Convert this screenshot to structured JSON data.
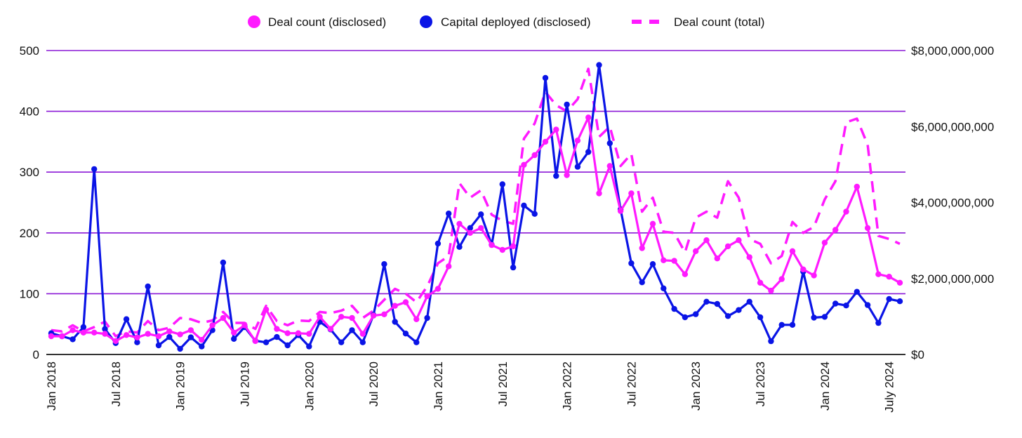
{
  "chart_data": {
    "type": "line",
    "title": "",
    "xlabel": "",
    "ylabel": "",
    "y2label": "",
    "legend_position": "top-center",
    "grid": true,
    "ylim": [
      0,
      500
    ],
    "y2lim": [
      0,
      8000000000
    ],
    "y_ticks": [
      0,
      100,
      200,
      300,
      400,
      500
    ],
    "y_tick_labels": [
      "0",
      "100",
      "200",
      "300",
      "400",
      "500"
    ],
    "y2_ticks": [
      0,
      2000000000,
      4000000000,
      6000000000,
      8000000000
    ],
    "y2_tick_labels": [
      "$0",
      "$2,000,000,000",
      "$4,000,000,000",
      "$6,000,000,000",
      "$8,000,000,000"
    ],
    "x_tick_indices": [
      0,
      6,
      12,
      18,
      24,
      30,
      36,
      42,
      48,
      54,
      60,
      66,
      72,
      78
    ],
    "x_tick_labels": [
      "Jan 2018",
      "Jul 2018",
      "Jan 2019",
      "Jul 2019",
      "Jan 2020",
      "Jul 2020",
      "Jan 2021",
      "Jul 2021",
      "Jan 2022",
      "Jul 2022",
      "Jan 2023",
      "Jul 2023",
      "Jan 2024",
      "July 2024"
    ],
    "x": [
      "2018-01",
      "2018-02",
      "2018-03",
      "2018-04",
      "2018-05",
      "2018-06",
      "2018-07",
      "2018-08",
      "2018-09",
      "2018-10",
      "2018-11",
      "2018-12",
      "2019-01",
      "2019-02",
      "2019-03",
      "2019-04",
      "2019-05",
      "2019-06",
      "2019-07",
      "2019-08",
      "2019-09",
      "2019-10",
      "2019-11",
      "2019-12",
      "2020-01",
      "2020-02",
      "2020-03",
      "2020-04",
      "2020-05",
      "2020-06",
      "2020-07",
      "2020-08",
      "2020-09",
      "2020-10",
      "2020-11",
      "2020-12",
      "2021-01",
      "2021-02",
      "2021-03",
      "2021-04",
      "2021-05",
      "2021-06",
      "2021-07",
      "2021-08",
      "2021-09",
      "2021-10",
      "2021-11",
      "2021-12",
      "2022-01",
      "2022-02",
      "2022-03",
      "2022-04",
      "2022-05",
      "2022-06",
      "2022-07",
      "2022-08",
      "2022-09",
      "2022-10",
      "2022-11",
      "2022-12",
      "2023-01",
      "2023-02",
      "2023-03",
      "2023-04",
      "2023-05",
      "2023-06",
      "2023-07",
      "2023-08",
      "2023-09",
      "2023-10",
      "2023-11",
      "2023-12",
      "2024-01",
      "2024-02",
      "2024-03",
      "2024-04",
      "2024-05",
      "2024-06",
      "2024-07",
      "2024-08"
    ],
    "series": [
      {
        "name": "Deal count (disclosed)",
        "axis": "left",
        "style": "solid-markers",
        "color": "#ff1aff",
        "values": [
          30,
          30,
          40,
          36,
          36,
          34,
          22,
          32,
          28,
          34,
          30,
          38,
          33,
          40,
          24,
          48,
          60,
          36,
          48,
          22,
          74,
          42,
          35,
          35,
          34,
          62,
          42,
          62,
          60,
          34,
          64,
          66,
          80,
          86,
          58,
          96,
          108,
          145,
          215,
          200,
          208,
          180,
          172,
          178,
          312,
          328,
          350,
          370,
          295,
          352,
          390,
          265,
          310,
          236,
          265,
          175,
          215,
          155,
          154,
          132,
          170,
          188,
          158,
          178,
          188,
          160,
          118,
          105,
          124,
          170,
          140,
          130,
          184,
          205,
          235,
          276,
          208,
          132,
          128,
          118
        ]
      },
      {
        "name": "Capital deployed (disclosed)",
        "axis": "right",
        "style": "solid-markers",
        "color": "#0a14e6",
        "values": [
          560000000,
          480000000,
          400000000,
          720000000,
          4880000000,
          670000000,
          300000000,
          930000000,
          320000000,
          1790000000,
          240000000,
          460000000,
          150000000,
          450000000,
          210000000,
          640000000,
          2420000000,
          410000000,
          720000000,
          360000000,
          320000000,
          460000000,
          240000000,
          510000000,
          210000000,
          860000000,
          660000000,
          320000000,
          640000000,
          320000000,
          1040000000,
          2380000000,
          860000000,
          550000000,
          320000000,
          960000000,
          2920000000,
          3710000000,
          2830000000,
          3330000000,
          3690000000,
          2890000000,
          4480000000,
          2290000000,
          3920000000,
          3700000000,
          7280000000,
          4700000000,
          6580000000,
          4940000000,
          5330000000,
          7620000000,
          5560000000,
          3820000000,
          2400000000,
          1900000000,
          2380000000,
          1740000000,
          1200000000,
          980000000,
          1060000000,
          1390000000,
          1330000000,
          1010000000,
          1170000000,
          1390000000,
          980000000,
          350000000,
          780000000,
          780000000,
          2180000000,
          970000000,
          990000000,
          1340000000,
          1290000000,
          1650000000,
          1300000000,
          830000000,
          1460000000,
          1400000000
        ]
      },
      {
        "name": "Deal count (total)",
        "axis": "left",
        "style": "dashed",
        "color": "#ff1aff",
        "values": [
          40,
          38,
          48,
          38,
          45,
          54,
          30,
          38,
          36,
          55,
          40,
          44,
          60,
          58,
          52,
          56,
          70,
          52,
          52,
          42,
          80,
          55,
          48,
          56,
          55,
          70,
          68,
          72,
          80,
          60,
          72,
          90,
          108,
          100,
          86,
          112,
          150,
          162,
          282,
          258,
          270,
          230,
          220,
          215,
          355,
          380,
          432,
          410,
          400,
          420,
          470,
          358,
          375,
          310,
          330,
          235,
          258,
          202,
          200,
          168,
          225,
          235,
          225,
          285,
          258,
          190,
          182,
          150,
          162,
          218,
          200,
          210,
          255,
          285,
          382,
          388,
          345,
          195,
          190,
          182
        ]
      }
    ]
  },
  "legend": [
    {
      "label": "Deal count (disclosed)",
      "marker": "circle",
      "color": "#ff1aff"
    },
    {
      "label": "Capital deployed (disclosed)",
      "marker": "circle",
      "color": "#0a14e6"
    },
    {
      "label": "Deal count (total)",
      "marker": "dash",
      "color": "#ff1aff"
    }
  ],
  "colors": {
    "grid": "#8b1ad6",
    "axis": "#333333"
  }
}
